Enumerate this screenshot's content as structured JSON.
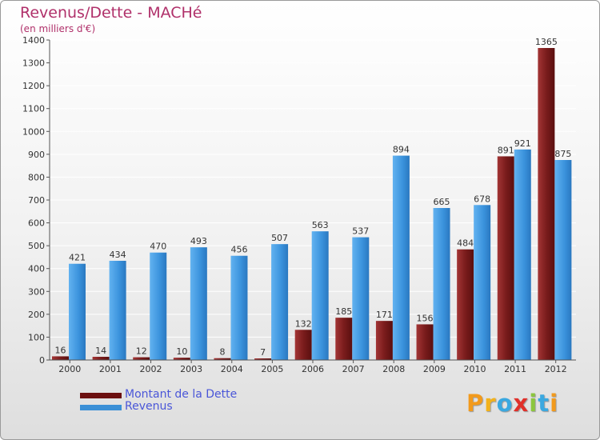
{
  "title": "Revenus/Dette - MACHé",
  "subtitle": "(en milliers d'€)",
  "colors": {
    "dette": "#7a1c1c",
    "revenus": "#3a8fd6",
    "title": "#b0306a",
    "legend_text": "#4a56d8"
  },
  "legend": [
    {
      "label": "Montant de la Dette",
      "color": "#6b0f0f"
    },
    {
      "label": "Revenus",
      "color": "#3a8fd6"
    }
  ],
  "logo": {
    "text": "Proxiti",
    "letters": [
      "P",
      "r",
      "o",
      "x",
      "i",
      "t",
      "i"
    ]
  },
  "chart_data": {
    "type": "bar",
    "title": "Revenus/Dette - MACHé",
    "ylabel": "(en milliers d'€)",
    "xlabel": "",
    "ylim": [
      0,
      1400
    ],
    "yticks": [
      0,
      100,
      200,
      300,
      400,
      500,
      600,
      700,
      800,
      900,
      1000,
      1100,
      1200,
      1300,
      1400
    ],
    "grid": true,
    "legend_position": "bottom-left",
    "categories": [
      "2000",
      "2001",
      "2002",
      "2003",
      "2004",
      "2005",
      "2006",
      "2007",
      "2008",
      "2009",
      "2010",
      "2011",
      "2012"
    ],
    "series": [
      {
        "name": "Montant de la Dette",
        "values": [
          16,
          14,
          12,
          10,
          8,
          7,
          132,
          185,
          171,
          156,
          484,
          891,
          1365
        ]
      },
      {
        "name": "Revenus",
        "values": [
          421,
          434,
          470,
          493,
          456,
          507,
          563,
          537,
          894,
          665,
          678,
          921,
          875
        ]
      }
    ]
  }
}
